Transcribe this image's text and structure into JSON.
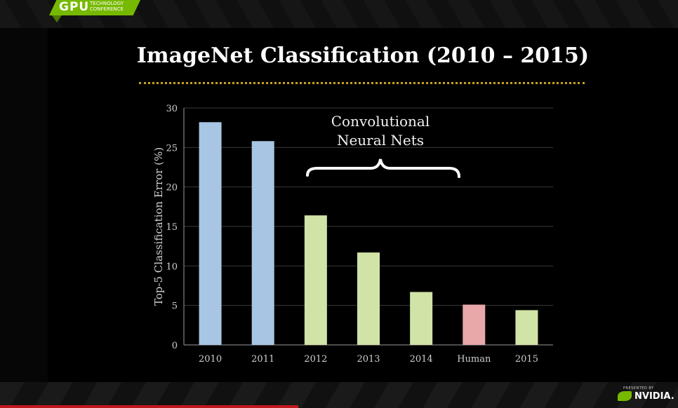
{
  "header": {
    "badge_main": "GPU",
    "badge_sub": "TECHNOLOGY CONFERENCE"
  },
  "slide": {
    "title": "ImageNet Classification (2010 – 2015)",
    "annotation": [
      "Convolutional",
      "Neural Nets"
    ]
  },
  "footer": {
    "presented_by": "PRESENTED BY",
    "brand": "NVIDIA."
  },
  "colors": {
    "blue": "#a8c6e4",
    "green": "#d2e3a8",
    "pink": "#e8a7a8",
    "accent": "#76b900",
    "dots": "#c9a21a"
  },
  "chart_data": {
    "type": "bar",
    "categories": [
      "2010",
      "2011",
      "2012",
      "2013",
      "2014",
      "Human",
      "2015"
    ],
    "values": [
      28.2,
      25.8,
      16.4,
      11.7,
      6.7,
      5.1,
      4.4
    ],
    "bar_colors": [
      "blue",
      "blue",
      "green",
      "green",
      "green",
      "pink",
      "green"
    ],
    "ylabel": "Top-5 Classification Error (%)",
    "ylim": [
      0,
      30
    ],
    "yticks": [
      0,
      5,
      10,
      15,
      20,
      25,
      30
    ],
    "grid": true
  }
}
